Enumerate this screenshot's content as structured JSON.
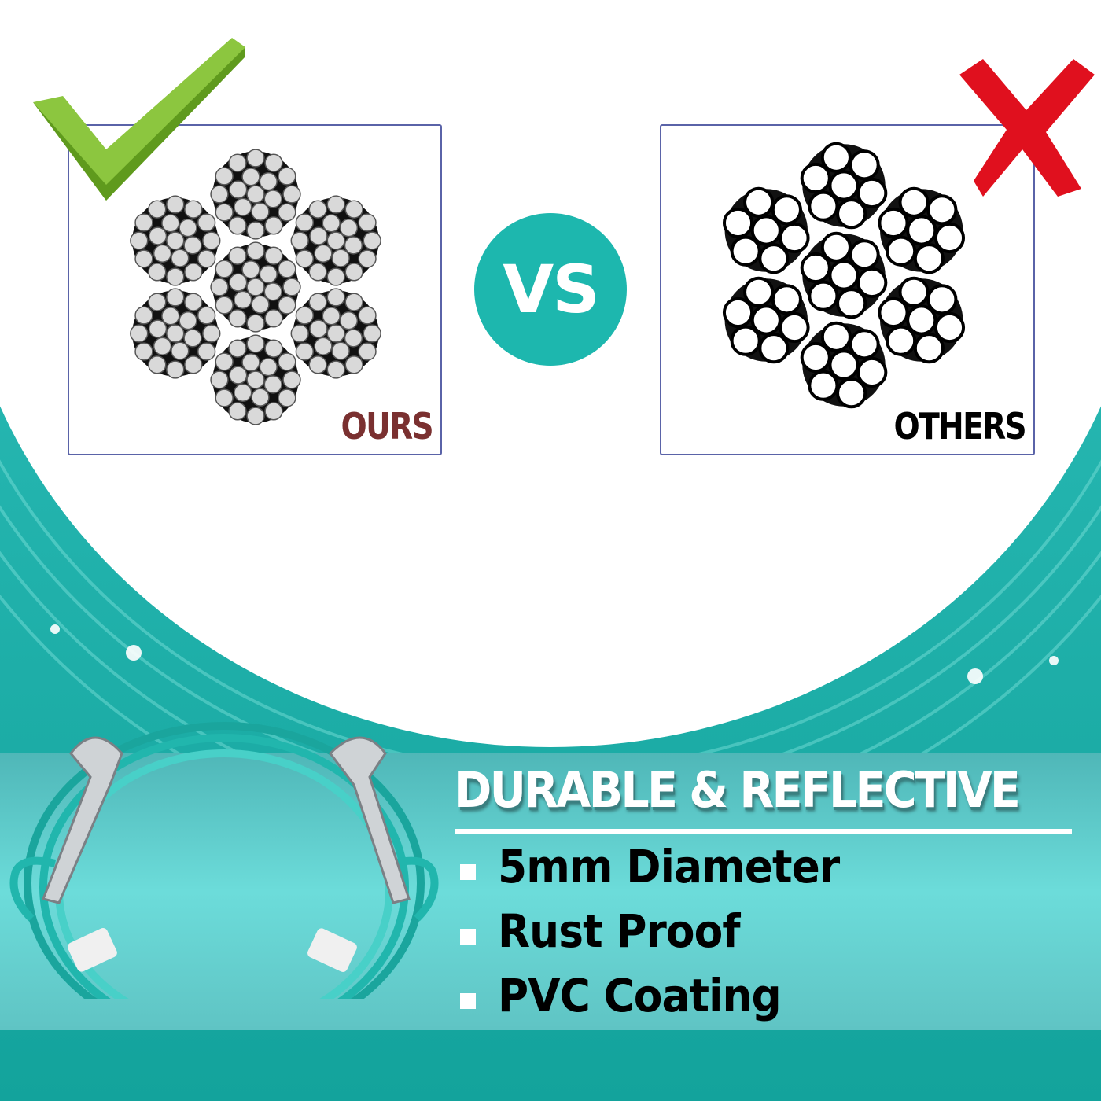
{
  "comparison": {
    "ours_label": "OURS",
    "others_label": "OTHERS",
    "vs_label": "VS",
    "check_icon": "green-checkmark",
    "cross_icon": "red-x"
  },
  "banner": {
    "title": "DURABLE & REFLECTIVE",
    "features": [
      "5mm Diameter",
      "Rust Proof",
      "PVC Coating"
    ]
  },
  "colors": {
    "teal": "#1db7ae",
    "banner_teal": "#6cdcda",
    "check_green": "#8cc63f",
    "cross_red": "#e0101e",
    "ours_label": "#7a3030"
  }
}
